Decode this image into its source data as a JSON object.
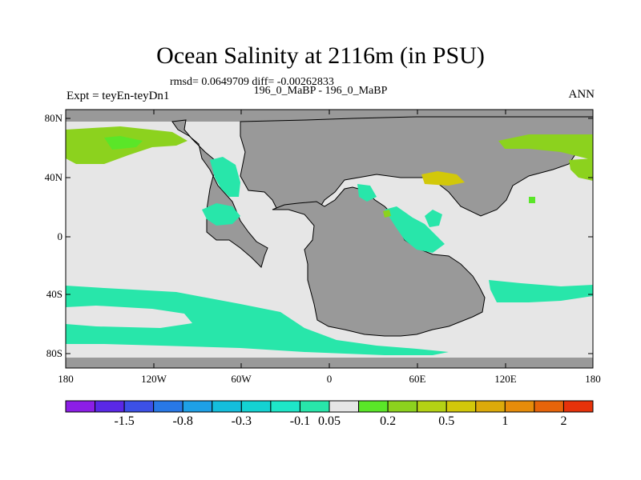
{
  "title": "Ocean Salinity at 2116m (in PSU)",
  "stats_line": "rmsd= 0.0649709 diff= -0.00262833",
  "subtitle": "196_0_MaBP - 196_0_MaBP",
  "expt_label": "Expt = teyEn-teyDn1",
  "season": "ANN",
  "x_ticks": [
    "180",
    "120W",
    "60W",
    "0",
    "60E",
    "120E",
    "180"
  ],
  "y_ticks": [
    "80N",
    "40N",
    "0",
    "40S",
    "80S"
  ],
  "colorbar": {
    "colors": [
      "#8c1ee6",
      "#5a28e6",
      "#3c50e6",
      "#2878e6",
      "#1ea0e6",
      "#14bedc",
      "#14d2d2",
      "#1ee6c8",
      "#28e6aa",
      "#e6e6e6",
      "#5ae628",
      "#8cd21e",
      "#b4d214",
      "#d2c80a",
      "#dcaa0a",
      "#e68c0a",
      "#e6640a",
      "#e6320a"
    ],
    "labels": [
      "-1.5",
      "-0.8",
      "-0.3",
      "-0.1",
      "0.05",
      "0.2",
      "0.5",
      "1",
      "2"
    ]
  },
  "map_colors": {
    "ocean_neutral": "#e6e6e6",
    "land": "#999999",
    "negative_small": "#28e6aa",
    "positive_small": "#8cd21e",
    "positive_mid": "#5ae628",
    "positive_high": "#d2c80a"
  }
}
